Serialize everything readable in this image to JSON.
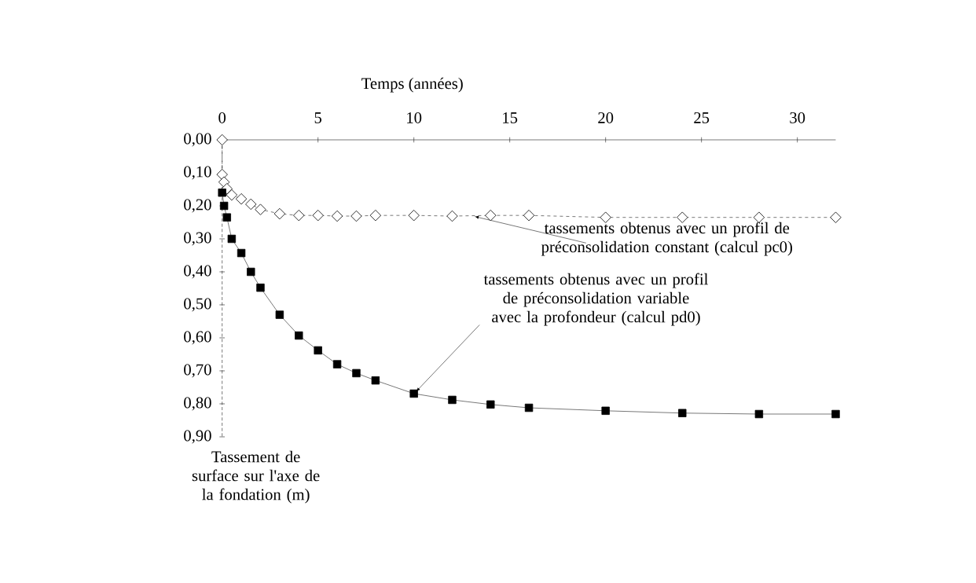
{
  "chart_data": {
    "type": "line",
    "xlabel": "Temps (années)",
    "ylabel": "Tassement de surface sur l'axe de la fondation (m)",
    "xlim": [
      0,
      32
    ],
    "xticks": [
      0,
      5,
      10,
      15,
      20,
      25,
      30
    ],
    "ylim": [
      0.9,
      0
    ],
    "yticks": [
      {
        "value": 0,
        "label": "0,00"
      },
      {
        "value": 0.1,
        "label": "0,10"
      },
      {
        "value": 0.2,
        "label": "0,20"
      },
      {
        "value": 0.3,
        "label": "0,30"
      },
      {
        "value": 0.4,
        "label": "0,40"
      },
      {
        "value": 0.5,
        "label": "0,50"
      },
      {
        "value": 0.6,
        "label": "0,60"
      },
      {
        "value": 0.7,
        "label": "0,70"
      },
      {
        "value": 0.8,
        "label": "0,80"
      },
      {
        "value": 0.9,
        "label": "0,90"
      }
    ],
    "grid": false,
    "series": [
      {
        "color": "#000000",
        "marker": "diamond",
        "line_style": "dashed",
        "x": [
          0,
          0,
          0.1,
          0.25,
          0.5,
          1,
          1.5,
          2,
          3,
          4,
          5,
          6,
          7,
          8,
          10,
          12,
          14,
          16,
          20,
          24,
          28,
          32
        ],
        "values": [
          0,
          0.105,
          0.128,
          0.148,
          0.167,
          0.179,
          0.195,
          0.211,
          0.224,
          0.229,
          0.229,
          0.231,
          0.231,
          0.229,
          0.229,
          0.231,
          0.229,
          0.229,
          0.235,
          0.235,
          0.235,
          0.235
        ]
      },
      {
        "color": "#000000",
        "marker": "square",
        "line_style": "solid",
        "x": [
          0,
          0.1,
          0.25,
          0.5,
          1,
          1.5,
          2,
          3,
          4,
          5,
          6,
          7,
          8,
          10,
          12,
          14,
          16,
          20,
          24,
          28,
          32
        ],
        "values": [
          0.16,
          0.2,
          0.235,
          0.3,
          0.343,
          0.4,
          0.448,
          0.53,
          0.593,
          0.638,
          0.68,
          0.707,
          0.729,
          0.769,
          0.788,
          0.802,
          0.812,
          0.821,
          0.828,
          0.831,
          0.831
        ]
      }
    ],
    "annotations": [
      {
        "text": "tassements obtenus avec un profil de préconsolidation constant (calcul pc0)",
        "x": 13,
        "y": 0.23
      },
      {
        "text": "tassements obtenus avec un profil de préconsolidation variable avec la profondeur (calcul pd0)",
        "x": 10,
        "y": 0.77
      }
    ]
  }
}
